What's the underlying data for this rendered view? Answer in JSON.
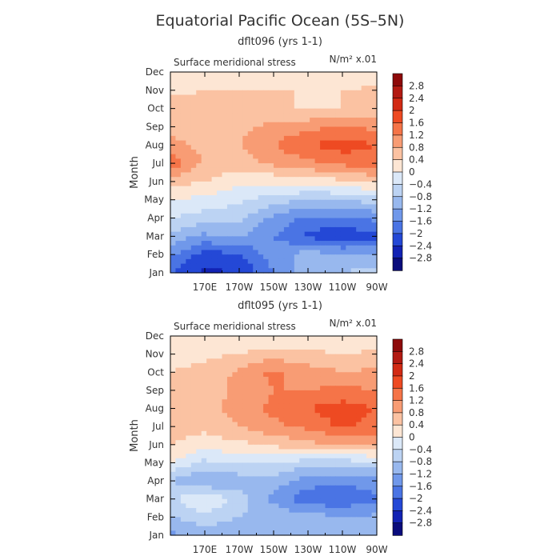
{
  "figure": {
    "title": "Equatorial Pacific Ocean (5S–5N)"
  },
  "scale": {
    "levels": [
      "2.8",
      "2.4",
      "2",
      "1.6",
      "1.2",
      "0.8",
      "0.4",
      "0",
      "-0.4",
      "-0.8",
      "-1.2",
      "-1.6",
      "-2",
      "-2.4",
      "-2.8"
    ],
    "colors": [
      "#8e0a0a",
      "#b31a12",
      "#d22a14",
      "#ee4a22",
      "#f57448",
      "#f89c74",
      "#fbc2a2",
      "#fde6d4",
      "#dbe8f8",
      "#bcd3f3",
      "#98b8ee",
      "#7098ea",
      "#4a74e4",
      "#2448d6",
      "#1222b4",
      "#0a0c7c"
    ]
  },
  "chart_data": [
    {
      "type": "heatmap",
      "subtitle": "dflt096 (yrs 1-1)",
      "plot_label": "Surface meridional stress",
      "units_label": "N/m² x.01",
      "ylabel": "Month",
      "xlabel": "",
      "x_ticks": [
        "170E",
        "170W",
        "150W",
        "130W",
        "110W",
        "90W"
      ],
      "y_ticks": [
        "Jan",
        "Feb",
        "Mar",
        "Apr",
        "May",
        "Jun",
        "Jul",
        "Aug",
        "Sep",
        "Oct",
        "Nov",
        "Dec"
      ],
      "x_lon": [
        150,
        170,
        190,
        210,
        230,
        250,
        270
      ],
      "z": [
        [
          -2.0,
          -2.5,
          -2.4,
          -1.6,
          -1.0,
          -0.8,
          -0.6
        ],
        [
          -1.5,
          -2.2,
          -2.0,
          -1.4,
          -1.0,
          -1.2,
          -1.2
        ],
        [
          -0.9,
          -1.3,
          -1.1,
          -1.6,
          -2.1,
          -2.3,
          -2.1
        ],
        [
          -0.4,
          -0.6,
          -0.7,
          -1.3,
          -1.7,
          -1.7,
          -1.5
        ],
        [
          0.0,
          -0.1,
          -0.3,
          -0.6,
          -0.8,
          -0.8,
          -0.6
        ],
        [
          0.6,
          0.4,
          0.1,
          0.1,
          0.2,
          0.3,
          0.5
        ],
        [
          1.5,
          0.7,
          0.6,
          0.9,
          1.1,
          1.3,
          1.5
        ],
        [
          0.9,
          0.7,
          0.8,
          1.2,
          1.6,
          1.8,
          1.6
        ],
        [
          0.7,
          0.6,
          0.7,
          0.9,
          1.1,
          1.2,
          1.1
        ],
        [
          0.6,
          0.6,
          0.6,
          0.6,
          0.3,
          0.4,
          0.6
        ],
        [
          0.3,
          0.4,
          0.4,
          0.4,
          0.4,
          0.4,
          0.5
        ],
        [
          0.1,
          0.1,
          0.0,
          0.0,
          0.0,
          0.0,
          0.1
        ]
      ],
      "zlim": [
        -2.8,
        2.8
      ]
    },
    {
      "type": "heatmap",
      "subtitle": "dflt095 (yrs 1-1)",
      "plot_label": "Surface meridional stress",
      "units_label": "N/m² x.01",
      "ylabel": "Month",
      "xlabel": "",
      "x_ticks": [
        "170E",
        "170W",
        "150W",
        "130W",
        "110W",
        "90W"
      ],
      "y_ticks": [
        "Jan",
        "Feb",
        "Mar",
        "Apr",
        "May",
        "Jun",
        "Jul",
        "Aug",
        "Sep",
        "Oct",
        "Nov",
        "Dec"
      ],
      "x_lon": [
        150,
        170,
        190,
        210,
        230,
        250,
        270
      ],
      "z": [
        [
          -1.3,
          -1.0,
          -1.1,
          -1.0,
          -0.9,
          -0.8,
          -0.8
        ],
        [
          -0.8,
          -0.6,
          -0.8,
          -0.9,
          -1.0,
          -1.2,
          -1.1
        ],
        [
          -0.5,
          0.1,
          -0.6,
          -1.3,
          -1.9,
          -1.9,
          -1.7
        ],
        [
          -0.8,
          -1.3,
          -1.1,
          -1.0,
          -1.4,
          -1.5,
          -1.4
        ],
        [
          0.0,
          -0.5,
          -0.3,
          -0.4,
          -0.6,
          -0.6,
          -0.5
        ],
        [
          0.4,
          0.2,
          0.3,
          0.5,
          0.7,
          0.8,
          0.9
        ],
        [
          0.6,
          0.5,
          0.8,
          1.1,
          1.3,
          1.7,
          1.4
        ],
        [
          0.5,
          0.6,
          1.0,
          1.3,
          1.6,
          1.8,
          1.6
        ],
        [
          0.5,
          0.6,
          0.9,
          1.2,
          1.2,
          1.3,
          1.2
        ],
        [
          0.4,
          0.5,
          0.9,
          1.3,
          1.0,
          0.8,
          0.9
        ],
        [
          0.3,
          0.3,
          0.4,
          0.6,
          0.5,
          0.4,
          0.5
        ],
        [
          0.0,
          0.1,
          0.1,
          0.0,
          0.0,
          0.0,
          0.1
        ]
      ],
      "zlim": [
        -2.8,
        2.8
      ]
    }
  ]
}
